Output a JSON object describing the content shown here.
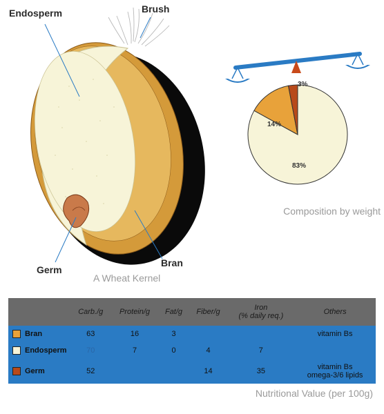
{
  "kernel": {
    "caption": "A Wheat Kernel",
    "labels": {
      "endosperm": "Endosperm",
      "brush": "Brush",
      "germ": "Germ",
      "bran": "Bran"
    },
    "colors": {
      "shadow": "#0a0a0a",
      "bran_outer": "#d49a3a",
      "bran_inner": "#e6b85e",
      "endosperm": "#f7f4d8",
      "germ": "#c97a4a",
      "brush_stroke": "#b8b8b8",
      "leader": "#2a7bc4",
      "label_text": "#2a2a2a",
      "caption_text": "#9a9a9a"
    }
  },
  "pie": {
    "caption": "Composition by weight",
    "slices": [
      {
        "name": "Endosperm",
        "value": 83,
        "label": "83%",
        "color": "#f7f4d8"
      },
      {
        "name": "Bran",
        "value": 14,
        "label": "14%",
        "color": "#e8a23a"
      },
      {
        "name": "Germ",
        "value": 3,
        "label": "3%",
        "color": "#b84a1a"
      }
    ],
    "stroke": "#333333",
    "scale_color": "#2a7bc4",
    "scale_fulcrum": "#c94a1a"
  },
  "table": {
    "caption": "Nutritional Value (per 100g)",
    "header_bg": "#6a6a6a",
    "row_bg": "#2a7bc4",
    "columns": [
      "",
      "Carb./g",
      "Protein/g",
      "Fat/g",
      "Fiber/g",
      "Iron\n(% daily req.)",
      "Others"
    ],
    "rows": [
      {
        "swatch": "#e8a23a",
        "name": "Bran",
        "carb": "63",
        "protein": "16",
        "fat": "3",
        "fiber": "",
        "iron": "",
        "others": "vitamin Bs"
      },
      {
        "swatch": "#f7f4d8",
        "name": "Endosperm",
        "carb": "70",
        "protein": "7",
        "fat": "0",
        "fiber": "4",
        "iron": "7",
        "others": ""
      },
      {
        "swatch": "#b84a1a",
        "name": "Germ",
        "carb": "52",
        "protein": "",
        "fat": "",
        "fiber": "14",
        "iron": "35",
        "others": "vitamin Bs\nomega-3/6 lipids"
      }
    ],
    "faded_cells": [
      [
        1,
        1
      ]
    ]
  }
}
